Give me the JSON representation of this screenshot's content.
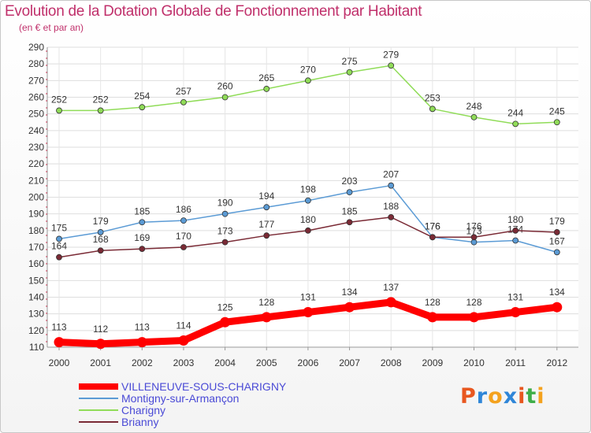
{
  "title": "Evolution de la Dotation Globale de Fonctionnement par Habitant",
  "subtitle": "(en € et par an)",
  "chart_data": {
    "type": "line",
    "x": [
      "2000",
      "2001",
      "2002",
      "2003",
      "2004",
      "2005",
      "2006",
      "2007",
      "2008",
      "2009",
      "2010",
      "2011",
      "2012"
    ],
    "ylim": [
      110,
      290
    ],
    "yticks": [
      110,
      120,
      130,
      140,
      150,
      160,
      170,
      180,
      190,
      200,
      210,
      220,
      230,
      240,
      250,
      260,
      270,
      280,
      290
    ],
    "grid": true,
    "legend_position": "bottom-left",
    "series": [
      {
        "name": "VILLENEUVE-SOUS-CHARIGNY",
        "color": "#ff0000",
        "values": [
          113,
          112,
          113,
          114,
          125,
          128,
          131,
          134,
          137,
          128,
          128,
          131,
          134
        ],
        "labels": [
          "113",
          "112",
          "113",
          "114",
          "125",
          "128",
          "131",
          "134",
          "137",
          "128",
          "128",
          "131",
          "134"
        ]
      },
      {
        "name": "Montigny-sur-Armançon",
        "color": "#5b9bd5",
        "values": [
          175,
          179,
          185,
          186,
          190,
          194,
          198,
          203,
          207,
          176,
          173,
          174,
          167
        ],
        "labels": [
          "175",
          "179",
          "185",
          "186",
          "190",
          "194",
          "198",
          "203",
          "207",
          "176",
          "173",
          "174",
          "167"
        ]
      },
      {
        "name": "Charigny",
        "color": "#90dc58",
        "values": [
          252,
          252,
          254,
          257,
          260,
          265,
          270,
          275,
          279,
          253,
          248,
          244,
          245
        ],
        "labels": [
          "252",
          "252",
          "254",
          "257",
          "260",
          "265",
          "270",
          "275",
          "279",
          "253",
          "248",
          "244",
          "245"
        ]
      },
      {
        "name": "Brianny",
        "color": "#7a2a35",
        "values": [
          164,
          168,
          169,
          170,
          173,
          177,
          180,
          185,
          188,
          176,
          176,
          180,
          179
        ],
        "labels": [
          "164",
          "168",
          "169",
          "170",
          "173",
          "177",
          "180",
          "185",
          "188",
          "176",
          "176",
          "180",
          "179"
        ]
      }
    ]
  },
  "logo": {
    "text": "Proxiti",
    "colors": [
      "#e8571f",
      "#2f86d8",
      "#f4a21e",
      "#2f86d8",
      "#e8571f",
      "#3fae49",
      "#f4a21e"
    ]
  }
}
